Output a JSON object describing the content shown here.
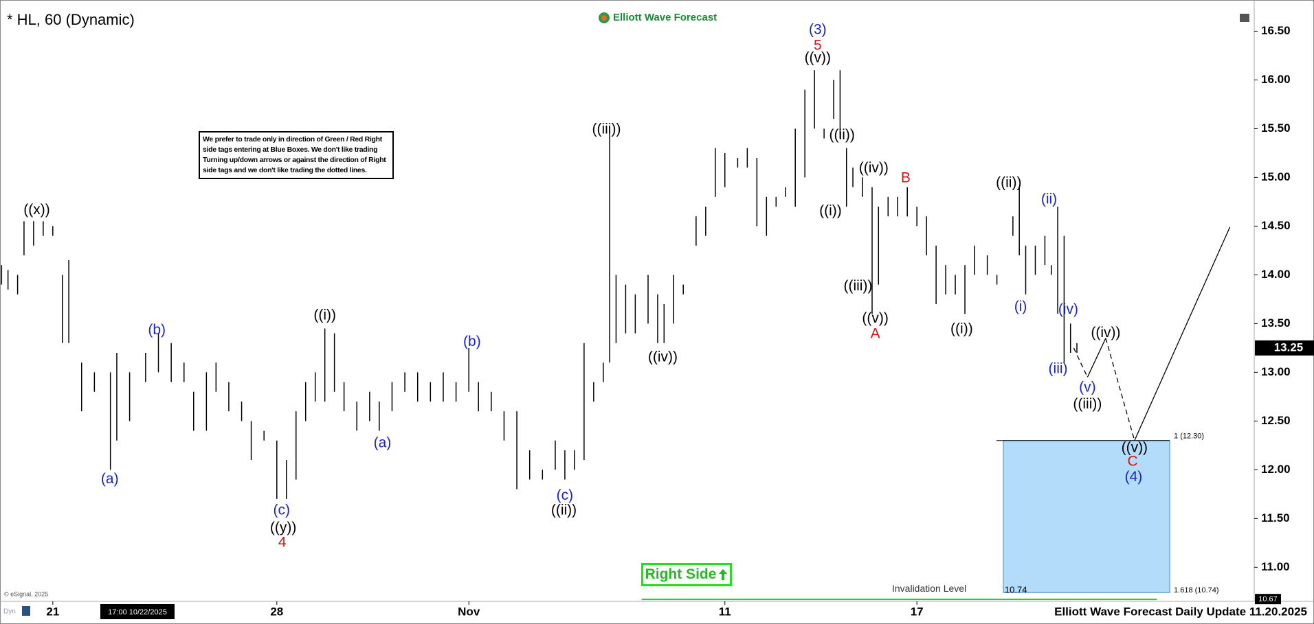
{
  "chart_data": {
    "type": "range-bar",
    "title": "* HL, 60 (Dynamic)",
    "logo": "Elliott Wave Forecast",
    "note": "We prefer to trade only in direction of Green / Red Right side tags entering at Blue Boxes. We don't like trading Turning up/down arrows or against the direction of Right side tags and we don't like trading the dotted lines.",
    "right_side": "Right Side",
    "footer": "Elliott Wave Forecast Daily Update 11.20.2025",
    "copyright": "© eSignal, 2025",
    "corner_tag": "Dyn",
    "cursor_label": "17:00 10/22/2025",
    "bar_color": "#000000",
    "xlim": [
      -1.65,
      37.54
    ],
    "ylim": [
      10.65,
      16.82
    ],
    "xticks": [
      {
        "value": 0,
        "label": "21"
      },
      {
        "value": 7,
        "label": "28"
      },
      {
        "value": 13,
        "label": "Nov"
      },
      {
        "value": 21,
        "label": "11"
      },
      {
        "value": 27,
        "label": "17"
      }
    ],
    "yticks": [
      {
        "value": 11,
        "label": "11.00"
      },
      {
        "value": 11.5,
        "label": "11.50"
      },
      {
        "value": 12,
        "label": "12.00"
      },
      {
        "value": 12.5,
        "label": "12.50"
      },
      {
        "value": 13,
        "label": "13.00"
      },
      {
        "value": 13.5,
        "label": "13.50"
      },
      {
        "value": 14,
        "label": "14.00"
      },
      {
        "value": 14.5,
        "label": "14.50"
      },
      {
        "value": 15,
        "label": "15.00"
      },
      {
        "value": 15.5,
        "label": "15.50"
      },
      {
        "value": 16,
        "label": "16.00"
      },
      {
        "value": 16.5,
        "label": "16.50"
      }
    ],
    "x": [
      -1.6,
      -1.4,
      -1.1,
      -0.9,
      -0.6,
      -0.3,
      0.0,
      0.3,
      0.5,
      0.9,
      1.3,
      1.8,
      2.0,
      2.4,
      2.9,
      3.3,
      3.7,
      4.1,
      4.4,
      4.8,
      5.1,
      5.5,
      5.9,
      6.2,
      6.6,
      7.0,
      7.3,
      7.6,
      7.9,
      8.2,
      8.5,
      8.8,
      9.1,
      9.5,
      9.9,
      10.2,
      10.6,
      11.0,
      11.4,
      11.8,
      12.2,
      12.6,
      13.0,
      13.3,
      13.7,
      14.1,
      14.5,
      14.9,
      15.3,
      15.7,
      16.0,
      16.3,
      16.6,
      16.9,
      17.2,
      17.4,
      17.6,
      17.9,
      18.2,
      18.6,
      18.9,
      19.1,
      19.4,
      19.7,
      20.1,
      20.4,
      20.7,
      21.0,
      21.4,
      21.7,
      22.0,
      22.3,
      22.6,
      22.9,
      23.2,
      23.5,
      23.8,
      24.1,
      24.4,
      24.6,
      24.8,
      25.0,
      25.3,
      25.6,
      25.8,
      26.1,
      26.4,
      26.7,
      27.0,
      27.3,
      27.6,
      27.9,
      28.2,
      28.5,
      28.8,
      29.2,
      29.5,
      30.0,
      30.2,
      30.4,
      30.7,
      31.0,
      31.2,
      31.4,
      31.6,
      31.8,
      32.0
    ],
    "highs": [
      14.1,
      14.05,
      14.0,
      14.55,
      14.55,
      14.55,
      14.5,
      14.0,
      14.15,
      13.1,
      13.0,
      13.0,
      13.2,
      13.0,
      13.2,
      13.4,
      13.3,
      13.1,
      12.8,
      13.0,
      13.1,
      12.9,
      12.7,
      12.5,
      12.4,
      12.3,
      12.1,
      12.6,
      12.9,
      13.0,
      13.45,
      13.4,
      12.9,
      12.7,
      12.8,
      12.7,
      12.9,
      13.0,
      13.0,
      12.9,
      13.0,
      12.9,
      13.25,
      12.9,
      12.8,
      12.6,
      12.6,
      12.2,
      12.0,
      12.3,
      12.2,
      12.2,
      13.3,
      12.9,
      13.1,
      15.45,
      14.0,
      13.9,
      13.8,
      14.0,
      13.8,
      13.7,
      14.0,
      13.9,
      14.6,
      14.7,
      15.3,
      15.25,
      15.2,
      15.3,
      15.2,
      14.8,
      14.8,
      14.9,
      15.5,
      15.9,
      16.1,
      15.5,
      16.0,
      16.1,
      15.3,
      15.1,
      15.0,
      14.9,
      14.7,
      14.8,
      14.8,
      14.9,
      14.7,
      14.6,
      14.3,
      14.1,
      14.0,
      14.1,
      14.3,
      14.2,
      14.0,
      14.6,
      14.9,
      14.3,
      14.3,
      14.4,
      14.1,
      14.7,
      14.4,
      13.5,
      13.3
    ],
    "lows": [
      13.9,
      13.85,
      13.8,
      14.2,
      14.3,
      14.4,
      14.4,
      13.3,
      13.3,
      12.6,
      12.8,
      12.0,
      12.3,
      12.5,
      12.9,
      13.0,
      12.9,
      12.9,
      12.4,
      12.4,
      12.8,
      12.6,
      12.5,
      12.1,
      12.3,
      11.7,
      11.7,
      11.9,
      12.5,
      12.7,
      12.7,
      12.8,
      12.6,
      12.4,
      12.5,
      12.4,
      12.6,
      12.8,
      12.7,
      12.7,
      12.7,
      12.7,
      12.8,
      12.6,
      12.6,
      12.3,
      11.8,
      11.9,
      11.9,
      12.0,
      11.9,
      12.0,
      12.1,
      12.7,
      12.9,
      13.1,
      13.3,
      13.4,
      13.4,
      13.5,
      13.3,
      13.3,
      13.5,
      13.8,
      14.3,
      14.4,
      14.8,
      14.9,
      15.1,
      15.1,
      14.5,
      14.4,
      14.7,
      14.8,
      14.7,
      15.0,
      15.5,
      15.4,
      15.6,
      15.4,
      14.7,
      14.9,
      14.8,
      13.6,
      13.9,
      14.6,
      14.6,
      14.6,
      14.5,
      14.2,
      13.7,
      13.8,
      13.8,
      13.6,
      14.0,
      14.0,
      13.9,
      14.4,
      14.2,
      13.8,
      14.0,
      14.1,
      14.0,
      13.6,
      13.1,
      13.2,
      13.2
    ],
    "annotations": [
      {
        "text": "((x))",
        "x": -0.5,
        "y": 14.66,
        "color": "#000000"
      },
      {
        "text": "(a)",
        "x": 1.78,
        "y": 11.9,
        "color": "#1a22c8"
      },
      {
        "text": "(b)",
        "x": 3.25,
        "y": 13.43,
        "color": "#1a22c8"
      },
      {
        "text": "(c)",
        "x": 7.15,
        "y": 11.58,
        "color": "#1a22c8"
      },
      {
        "text": "((y))",
        "x": 7.2,
        "y": 11.4,
        "color": "#000000"
      },
      {
        "text": "4",
        "x": 7.17,
        "y": 11.25,
        "color": "#e01010"
      },
      {
        "text": "((i))",
        "x": 8.5,
        "y": 13.58,
        "color": "#000000"
      },
      {
        "text": "(a)",
        "x": 10.3,
        "y": 12.27,
        "color": "#1a22c8"
      },
      {
        "text": "(b)",
        "x": 13.1,
        "y": 13.31,
        "color": "#1a22c8"
      },
      {
        "text": "(c)",
        "x": 16.0,
        "y": 11.73,
        "color": "#1a22c8"
      },
      {
        "text": "((ii))",
        "x": 15.97,
        "y": 11.58,
        "color": "#000000"
      },
      {
        "text": "((iii))",
        "x": 17.3,
        "y": 15.49,
        "color": "#000000"
      },
      {
        "text": "((iv))",
        "x": 19.06,
        "y": 13.15,
        "color": "#000000"
      },
      {
        "text": "(3)",
        "x": 23.9,
        "y": 16.51,
        "color": "#1a22c8"
      },
      {
        "text": "5",
        "x": 23.9,
        "y": 16.35,
        "color": "#e01010"
      },
      {
        "text": "((v))",
        "x": 23.9,
        "y": 16.22,
        "color": "#000000"
      },
      {
        "text": "((ii))",
        "x": 24.66,
        "y": 15.43,
        "color": "#000000"
      },
      {
        "text": "((i))",
        "x": 24.3,
        "y": 14.65,
        "color": "#000000"
      },
      {
        "text": "((iv))",
        "x": 25.65,
        "y": 15.09,
        "color": "#000000"
      },
      {
        "text": "B",
        "x": 26.65,
        "y": 14.99,
        "color": "#e01010"
      },
      {
        "text": "((iii))",
        "x": 25.16,
        "y": 13.88,
        "color": "#000000"
      },
      {
        "text": "((v))",
        "x": 25.7,
        "y": 13.55,
        "color": "#000000"
      },
      {
        "text": "A",
        "x": 25.7,
        "y": 13.39,
        "color": "#e01010"
      },
      {
        "text": "((i))",
        "x": 28.4,
        "y": 13.44,
        "color": "#000000"
      },
      {
        "text": "((ii))",
        "x": 29.87,
        "y": 14.94,
        "color": "#000000"
      },
      {
        "text": "(ii)",
        "x": 31.13,
        "y": 14.77,
        "color": "#1a22c8"
      },
      {
        "text": "(i)",
        "x": 30.24,
        "y": 13.67,
        "color": "#1a22c8"
      },
      {
        "text": "(iv)",
        "x": 31.73,
        "y": 13.64,
        "color": "#1a22c8"
      },
      {
        "text": "(iii)",
        "x": 31.41,
        "y": 13.03,
        "color": "#1a22c8"
      },
      {
        "text": "(v)",
        "x": 32.33,
        "y": 12.84,
        "color": "#1a22c8"
      },
      {
        "text": "((iii))",
        "x": 32.33,
        "y": 12.67,
        "color": "#000000"
      },
      {
        "text": "((iv))",
        "x": 32.9,
        "y": 13.4,
        "color": "#000000"
      },
      {
        "text": "((v))",
        "x": 33.8,
        "y": 12.22,
        "color": "#000000"
      },
      {
        "text": "C",
        "x": 33.74,
        "y": 12.08,
        "color": "#e01010"
      },
      {
        "text": "(4)",
        "x": 33.77,
        "y": 11.92,
        "color": "#1a22c8"
      }
    ],
    "projection": {
      "x": [
        31.9,
        32.33,
        32.9,
        33.8,
        36.78
      ],
      "y": [
        13.25,
        12.95,
        13.35,
        12.3,
        14.49
      ],
      "dashed": [
        true,
        false,
        true,
        false
      ]
    },
    "target_box": {
      "x": [
        29.7,
        34.9
      ],
      "y": [
        12.3,
        10.74
      ],
      "color": "#b3dcfa",
      "top_label": "1 (12.30)",
      "bottom_label": "1.618 (10.74)",
      "inner_label": "10.74"
    },
    "invalidation": {
      "value": 10.67,
      "x": [
        18.4,
        34.5
      ],
      "label": "Invalidation Level",
      "color": "#22cc22"
    },
    "last_price": 13.25
  }
}
